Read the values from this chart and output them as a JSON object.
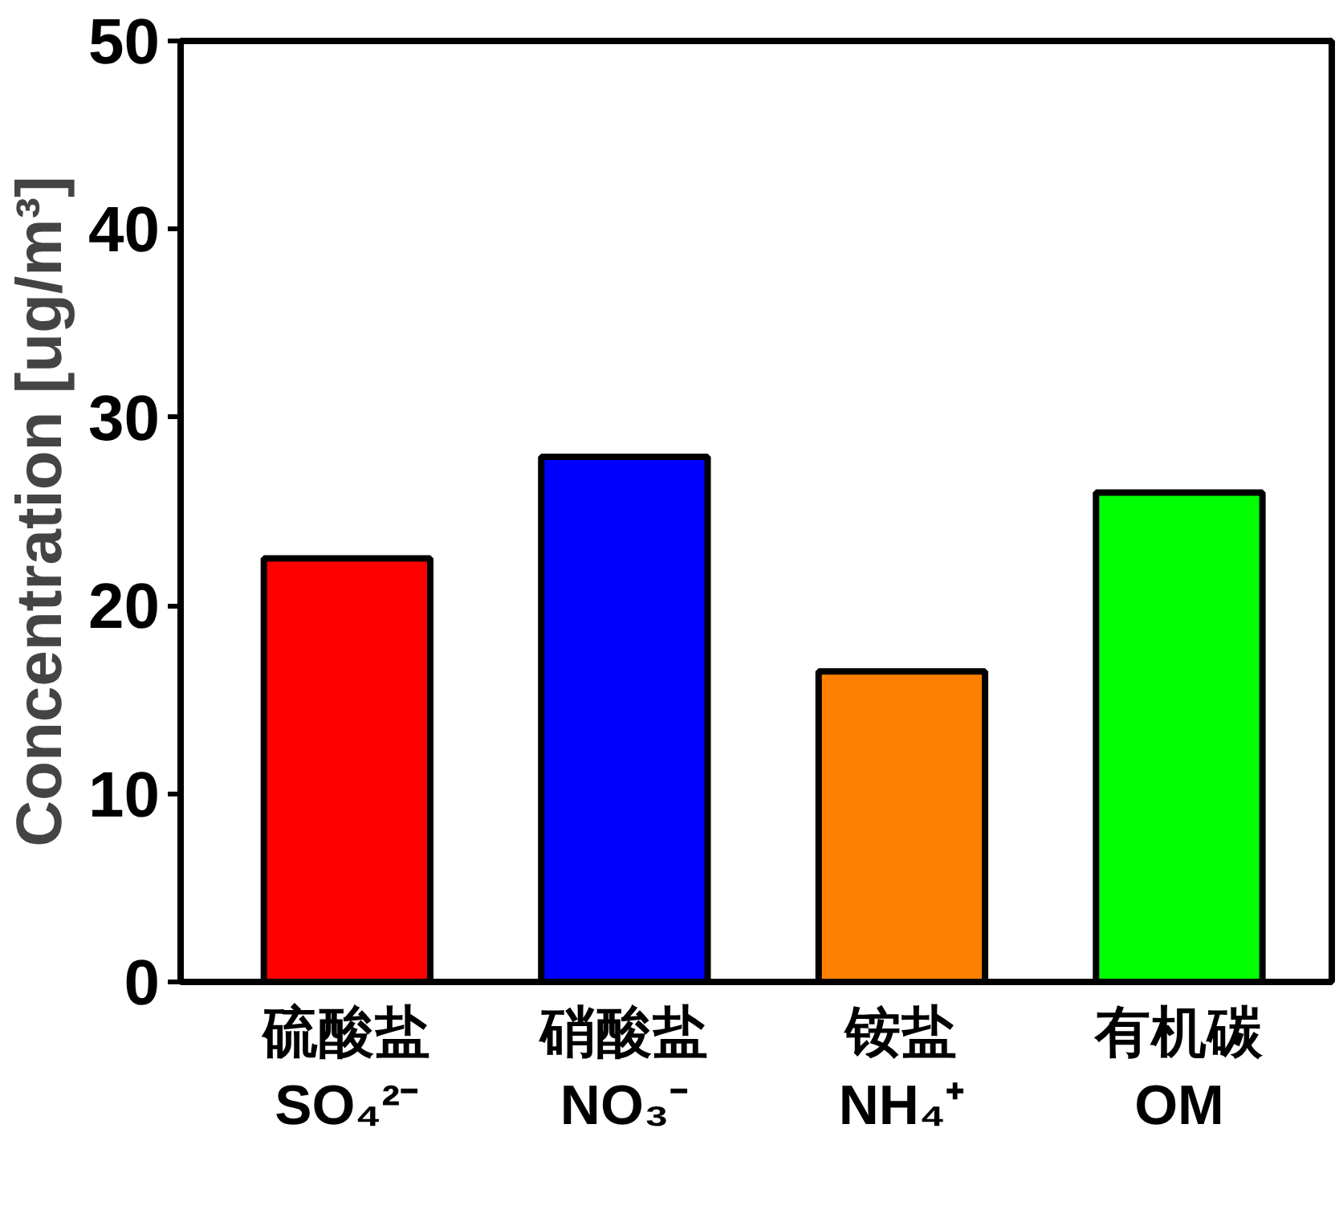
{
  "chart_data": {
    "type": "bar",
    "categories": [
      "硫酸盐\nSO₄²⁻",
      "硝酸盐\nNO₃⁻",
      "铵盐\nNH₄⁺",
      "有机碳\nOM"
    ],
    "values": [
      22.5,
      27.9,
      16.5,
      26.0
    ],
    "colors": [
      "#ff0000",
      "#0000ff",
      "#ff8000",
      "#00ff00"
    ],
    "ylabel": "Concentration [ug/m³]",
    "ylim": [
      0,
      50
    ],
    "yticks": [
      0,
      10,
      20,
      30,
      40,
      50
    ]
  }
}
